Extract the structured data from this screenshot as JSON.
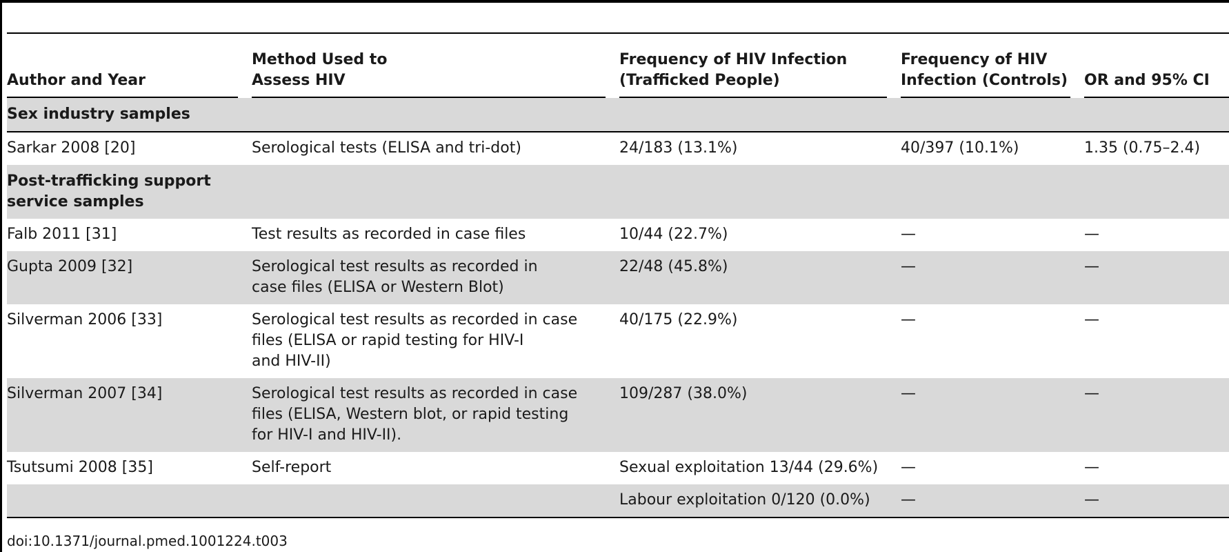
{
  "table": {
    "headers": {
      "author": "Author and Year",
      "method_l1": "Method Used to",
      "method_l2": "Assess HIV",
      "freq_l1": "Frequency of HIV Infection",
      "freq_l2": "(Trafficked People)",
      "ctrl_l1": "Frequency of HIV",
      "ctrl_l2": "Infection (Controls)",
      "or": "OR and 95% CI"
    },
    "sections": {
      "sex_industry": "Sex industry samples",
      "post_l1": "Post-trafficking support",
      "post_l2": "service samples"
    },
    "rows": [
      {
        "author": "Sarkar 2008 [20]",
        "method": [
          "Serological tests (ELISA and tri-dot)"
        ],
        "freq": "24/183 (13.1%)",
        "controls": "40/397 (10.1%)",
        "or": "1.35 (0.75–2.4)"
      },
      {
        "author": "Falb 2011 [31]",
        "method": [
          "Test results as recorded in case files"
        ],
        "freq": "10/44 (22.7%)",
        "controls": "—",
        "or": "—"
      },
      {
        "author": "Gupta 2009 [32]",
        "method": [
          "Serological test results as recorded in",
          "case files (ELISA or Western Blot)"
        ],
        "freq": "22/48 (45.8%)",
        "controls": "—",
        "or": "—"
      },
      {
        "author": "Silverman 2006 [33]",
        "method": [
          "Serological test results as recorded in case",
          "files (ELISA or rapid testing for HIV-I",
          "and HIV-II)"
        ],
        "freq": "40/175 (22.9%)",
        "controls": "—",
        "or": "—"
      },
      {
        "author": "Silverman 2007 [34]",
        "method": [
          "Serological test results as recorded in case",
          "files (ELISA, Western blot, or rapid testing",
          "for HIV-I and HIV-II)."
        ],
        "freq": "109/287 (38.0%)",
        "controls": "—",
        "or": "—"
      },
      {
        "author": "Tsutsumi 2008 [35]",
        "method": [
          "Self-report"
        ],
        "freq": "Sexual exploitation 13/44 (29.6%)",
        "controls": "—",
        "or": "—"
      },
      {
        "author": "",
        "method": [
          ""
        ],
        "freq": "Labour exploitation 0/120 (0.0%)",
        "controls": "—",
        "or": "—"
      }
    ]
  },
  "footer": {
    "doi": "doi:10.1371/journal.pmed.1001224.t003"
  }
}
